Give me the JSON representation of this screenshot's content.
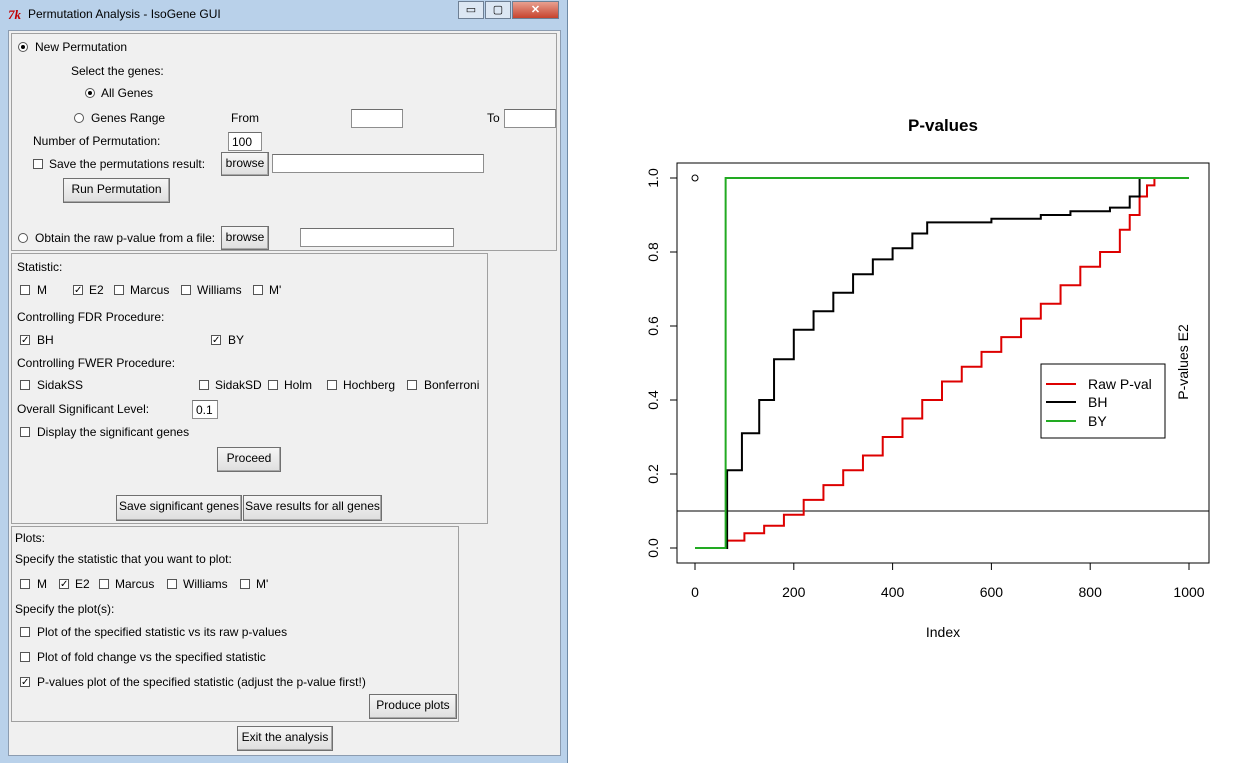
{
  "window": {
    "title": "Permutation Analysis - IsoGene GUI",
    "icon": "tk-icon",
    "min": "▭",
    "max": "▢",
    "close": "✕"
  },
  "permutation": {
    "new_label": "New Permutation",
    "select_genes": "Select the genes:",
    "all_genes": "All Genes",
    "genes_range": "Genes Range",
    "from": "From",
    "to": "To",
    "from_value": "",
    "to_value": "",
    "num_perm_label": "Number of Permutation:",
    "num_perm_value": "100",
    "save_perm_label": "Save the permutations result:",
    "browse": "browse",
    "save_path": "",
    "run": "Run Permutation",
    "obtain_label": "Obtain the raw p-value from a file:",
    "obtain_path": ""
  },
  "statistic": {
    "label": "Statistic:",
    "options": [
      {
        "label": "M",
        "checked": false
      },
      {
        "label": "E2",
        "checked": true
      },
      {
        "label": "Marcus",
        "checked": false
      },
      {
        "label": "Williams",
        "checked": false
      },
      {
        "label": "M'",
        "checked": false
      }
    ],
    "fdr_label": "Controlling FDR Procedure:",
    "bh": "BH",
    "by": "BY",
    "fwer_label": "Controlling FWER Procedure:",
    "fwer": [
      "SidakSS",
      "SidakSD",
      "Holm",
      "Hochberg",
      "Bonferroni"
    ],
    "sig_level_label": "Overall Significant Level:",
    "sig_level_value": "0.1",
    "display_sig": "Display the significant genes",
    "proceed": "Proceed",
    "save_sig": "Save significant genes",
    "save_all": "Save results for all genes"
  },
  "plots": {
    "label": "Plots:",
    "specify_stat": "Specify the statistic that you want to plot:",
    "options": [
      {
        "label": "M",
        "checked": false
      },
      {
        "label": "E2",
        "checked": true
      },
      {
        "label": "Marcus",
        "checked": false
      },
      {
        "label": "Williams",
        "checked": false
      },
      {
        "label": "M'",
        "checked": false
      }
    ],
    "specify_plots": "Specify the plot(s):",
    "plot1": "Plot of the specified statistic vs its raw p-values",
    "plot2": "Plot of fold change vs the specified statistic",
    "plot3": "P-values plot of the specified statistic (adjust the p-value first!)",
    "produce": "Produce plots",
    "exit": "Exit the analysis"
  },
  "chart_data": {
    "type": "line",
    "title": "P-values",
    "xlabel": "Index",
    "ylabel": "P-values E2",
    "xlim": [
      0,
      1000
    ],
    "ylim": [
      0,
      1
    ],
    "xticks": [
      "0",
      "200",
      "400",
      "600",
      "800",
      "1000"
    ],
    "yticks": [
      "0.0",
      "0.2",
      "0.4",
      "0.6",
      "0.8",
      "1.0"
    ],
    "hline": 0.1,
    "legend_position": "right",
    "series": [
      {
        "name": "Raw P-val",
        "color": "#dd0000",
        "x": [
          0,
          65,
          100,
          140,
          180,
          220,
          260,
          300,
          340,
          380,
          420,
          460,
          500,
          540,
          580,
          620,
          660,
          700,
          740,
          780,
          820,
          860,
          880,
          900,
          915,
          930
        ],
        "y": [
          0,
          0.02,
          0.04,
          0.06,
          0.09,
          0.13,
          0.17,
          0.21,
          0.25,
          0.3,
          0.35,
          0.4,
          0.45,
          0.49,
          0.53,
          0.57,
          0.62,
          0.66,
          0.71,
          0.76,
          0.8,
          0.86,
          0.9,
          0.95,
          0.98,
          1.0
        ]
      },
      {
        "name": "BH",
        "color": "#000000",
        "x": [
          0,
          65,
          95,
          130,
          160,
          200,
          240,
          280,
          320,
          360,
          400,
          440,
          470,
          520,
          600,
          700,
          760,
          800,
          840,
          880,
          900
        ],
        "y": [
          0,
          0.21,
          0.31,
          0.4,
          0.51,
          0.59,
          0.64,
          0.69,
          0.74,
          0.78,
          0.81,
          0.85,
          0.88,
          0.88,
          0.89,
          0.9,
          0.91,
          0.91,
          0.92,
          0.95,
          1.0
        ]
      },
      {
        "name": "BY",
        "color": "#22aa22",
        "x": [
          0,
          62,
          1000
        ],
        "y": [
          0,
          1.0,
          1.0
        ]
      }
    ],
    "points": [
      {
        "x": 0,
        "y": 1.0
      }
    ]
  }
}
